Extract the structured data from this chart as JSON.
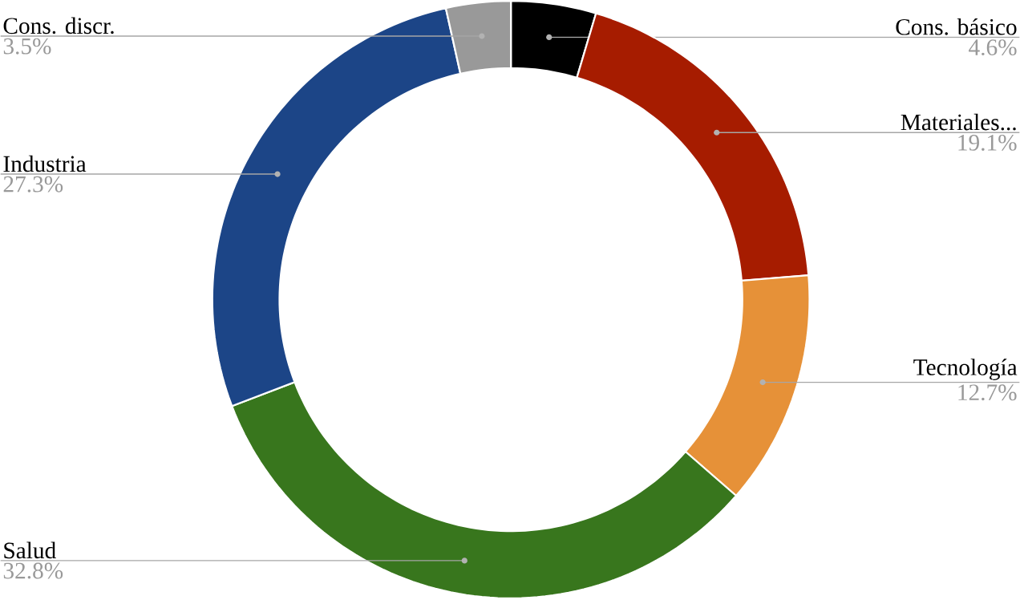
{
  "chart_data": {
    "type": "donut",
    "categories": [
      "Cons. básico",
      "Materiales...",
      "Tecnología",
      "Salud",
      "Industria",
      "Cons. discr."
    ],
    "values": [
      4.6,
      19.1,
      12.7,
      32.8,
      27.3,
      3.5
    ],
    "value_labels": [
      "4.6%",
      "19.1%",
      "12.7%",
      "32.8%",
      "27.3%",
      "3.5%"
    ],
    "colors": [
      "#000000",
      "#a61c00",
      "#e69138",
      "#38761d",
      "#1c4587",
      "#999999"
    ]
  }
}
